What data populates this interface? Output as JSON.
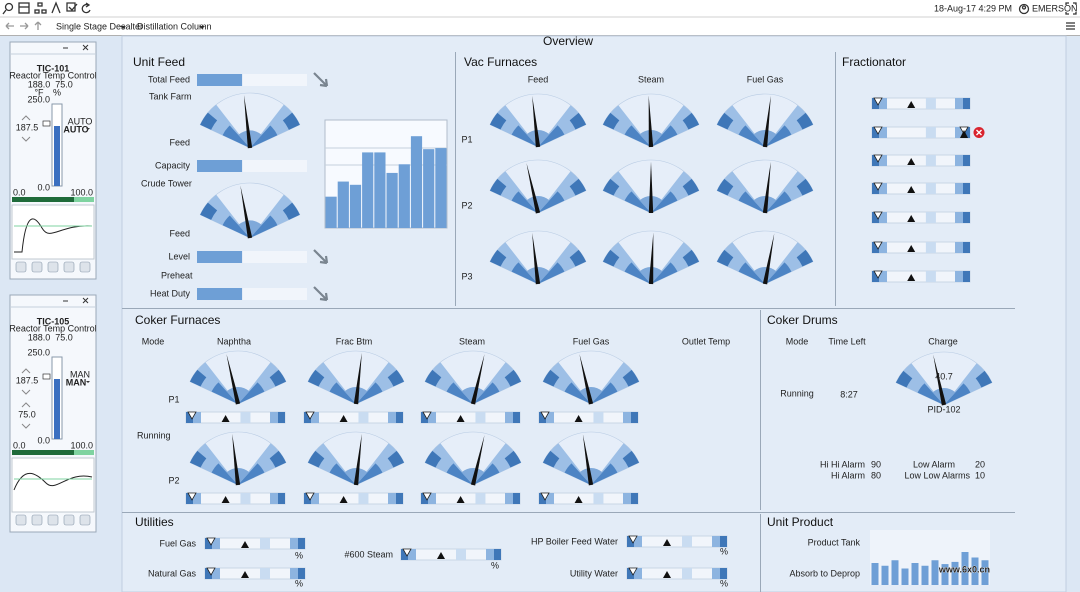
{
  "toolbar": {
    "tabs": [
      "Single Stage Desalter",
      "Distillation Column"
    ],
    "datetime": "18-Aug-17 4:29 PM",
    "user": "EMERSON"
  },
  "title": "Overview",
  "faceplates": [
    {
      "tag": "TIC-101",
      "desc": "Reactor Temp Control",
      "pv": "188.0",
      "out": "75.0",
      "pv_unit": "°F",
      "out_unit": "%",
      "scale_top": "250.0",
      "sp": "187.5",
      "mode_label": "AUTO",
      "mode": "AUTO",
      "scale_bottom": "0.0",
      "out_min": "0.0",
      "out_max": "100.0"
    },
    {
      "tag": "TIC-105",
      "desc": "Reactor Temp Control",
      "pv": "188.0",
      "out": "75.0",
      "scale_top": "250.0",
      "sp": "187.5",
      "mode_label": "MAN",
      "mode": "MAN",
      "out_sp": "75.0",
      "scale_bottom": "0.0",
      "out_min": "0.0",
      "out_max": "100.0"
    }
  ],
  "unit_feed": {
    "title": "Unit Feed",
    "headers": [
      "Tank Farm",
      "Crude Tower",
      "Preheat"
    ],
    "bars": [
      {
        "label": "Total Feed",
        "value": 41
      },
      {
        "label": "Capacity",
        "value": 41
      },
      {
        "label": "Level",
        "value": 41
      },
      {
        "label": "Heat Duty",
        "value": 41
      }
    ],
    "gauges": [
      {
        "label": "Feed",
        "value": 45
      },
      {
        "label": "Feed",
        "value": 42
      }
    ],
    "chart": {
      "values": [
        29,
        43,
        40,
        70,
        70,
        51,
        59,
        85,
        73,
        74
      ]
    }
  },
  "vac_furnaces": {
    "title": "Vac Furnaces",
    "columns": [
      "Feed",
      "Steam",
      "Fuel Gas"
    ],
    "rows": [
      "P1",
      "P2",
      "P3"
    ],
    "gauges": [
      [
        45,
        48,
        55
      ],
      [
        40,
        50,
        55
      ],
      [
        45,
        52,
        58
      ]
    ]
  },
  "fractionator": {
    "title": "Fractionator"
  },
  "coker_furnaces": {
    "title": "Coker Furnaces",
    "mode_header": "Mode",
    "columns": [
      "Naphtha",
      "Frac Btm",
      "Steam",
      "Fuel Gas",
      "Outlet Temp"
    ],
    "rows": [
      "P1",
      "P2"
    ],
    "mode": "Running",
    "gauges": [
      [
        40,
        55,
        60,
        40
      ],
      [
        45,
        55,
        60,
        43
      ]
    ]
  },
  "coker_drums": {
    "title": "Coker Drums",
    "headers": [
      "Mode",
      "Time Left",
      "Charge"
    ],
    "mode": "Running",
    "time_left": "8:27",
    "charge": {
      "value": 40.7,
      "tag": "PID-102"
    },
    "alarms": [
      {
        "label": "Hi Hi Alarm",
        "value": 90
      },
      {
        "label": "Hi Alarm",
        "value": 80
      },
      {
        "label": "Low Alarm",
        "value": 20
      },
      {
        "label": "Low Low Alarms",
        "value": 10
      }
    ]
  },
  "utilities": {
    "title": "Utilities",
    "items": [
      {
        "label": "Fuel Gas",
        "unit": "%"
      },
      {
        "label": "Natural Gas",
        "unit": "%"
      },
      {
        "label": "#600 Steam",
        "unit": "%"
      },
      {
        "label": "HP Boiler Feed Water",
        "unit": "%"
      },
      {
        "label": "Utility Water",
        "unit": "%"
      }
    ]
  },
  "unit_product": {
    "title": "Unit Product",
    "labels": [
      "Product Tank",
      "Absorb to Deprop"
    ],
    "chart": {
      "values": [
        40,
        35,
        45,
        30,
        40,
        35,
        45,
        38,
        42,
        60,
        50,
        45
      ]
    }
  },
  "watermark": "www.6x0.cn"
}
